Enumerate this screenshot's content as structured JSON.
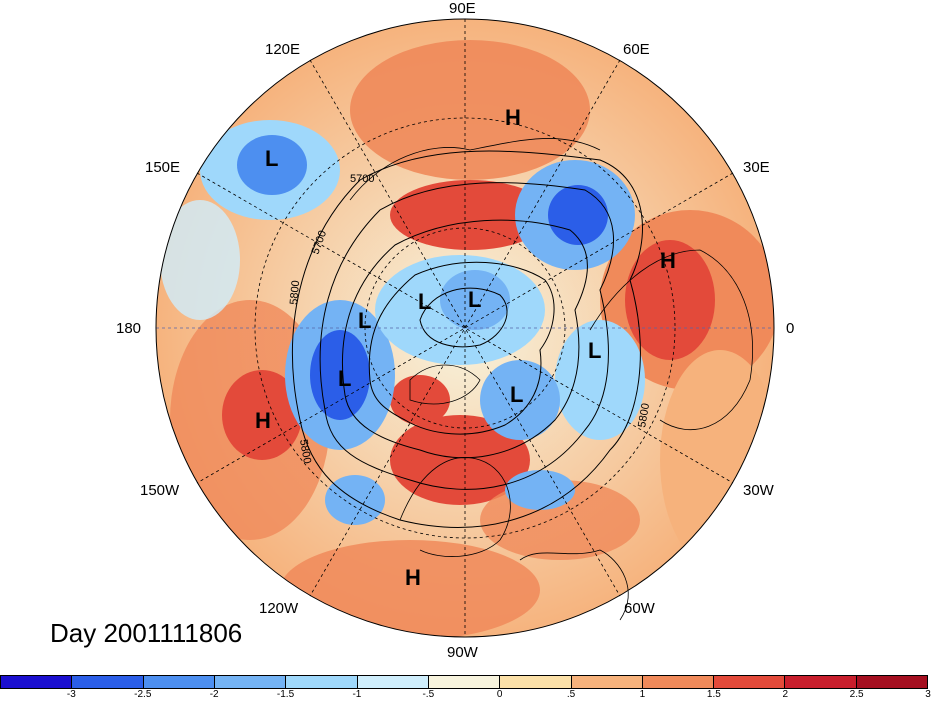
{
  "title": "Day 2001111806",
  "longitude_labels": {
    "e90": "90E",
    "e120": "120E",
    "e60": "60E",
    "e150": "150E",
    "e30": "30E",
    "w180": "180",
    "e0": "0",
    "w150": "150W",
    "w30": "30W",
    "w120": "120W",
    "w60": "60W",
    "w90": "90W"
  },
  "pressure_centers": {
    "high_symbol": "H",
    "low_symbol": "L"
  },
  "contour_labels": {
    "c5700": "5700",
    "c5800": "5800"
  },
  "colorbar": {
    "colors": [
      "#1b0fd0",
      "#2b5ee8",
      "#4d8ff0",
      "#74b3f4",
      "#9fd8fb",
      "#cfeefc",
      "#f7f3dd",
      "#fbe0a8",
      "#f6b27c",
      "#f08a5a",
      "#e34a3a",
      "#c81e2c",
      "#a50f20"
    ],
    "labels": [
      "-3",
      "-2.5",
      "-2",
      "-1.5",
      "-1",
      "-.5",
      "0",
      ".5",
      "1",
      "1.5",
      "2",
      "2.5",
      "3"
    ]
  }
}
